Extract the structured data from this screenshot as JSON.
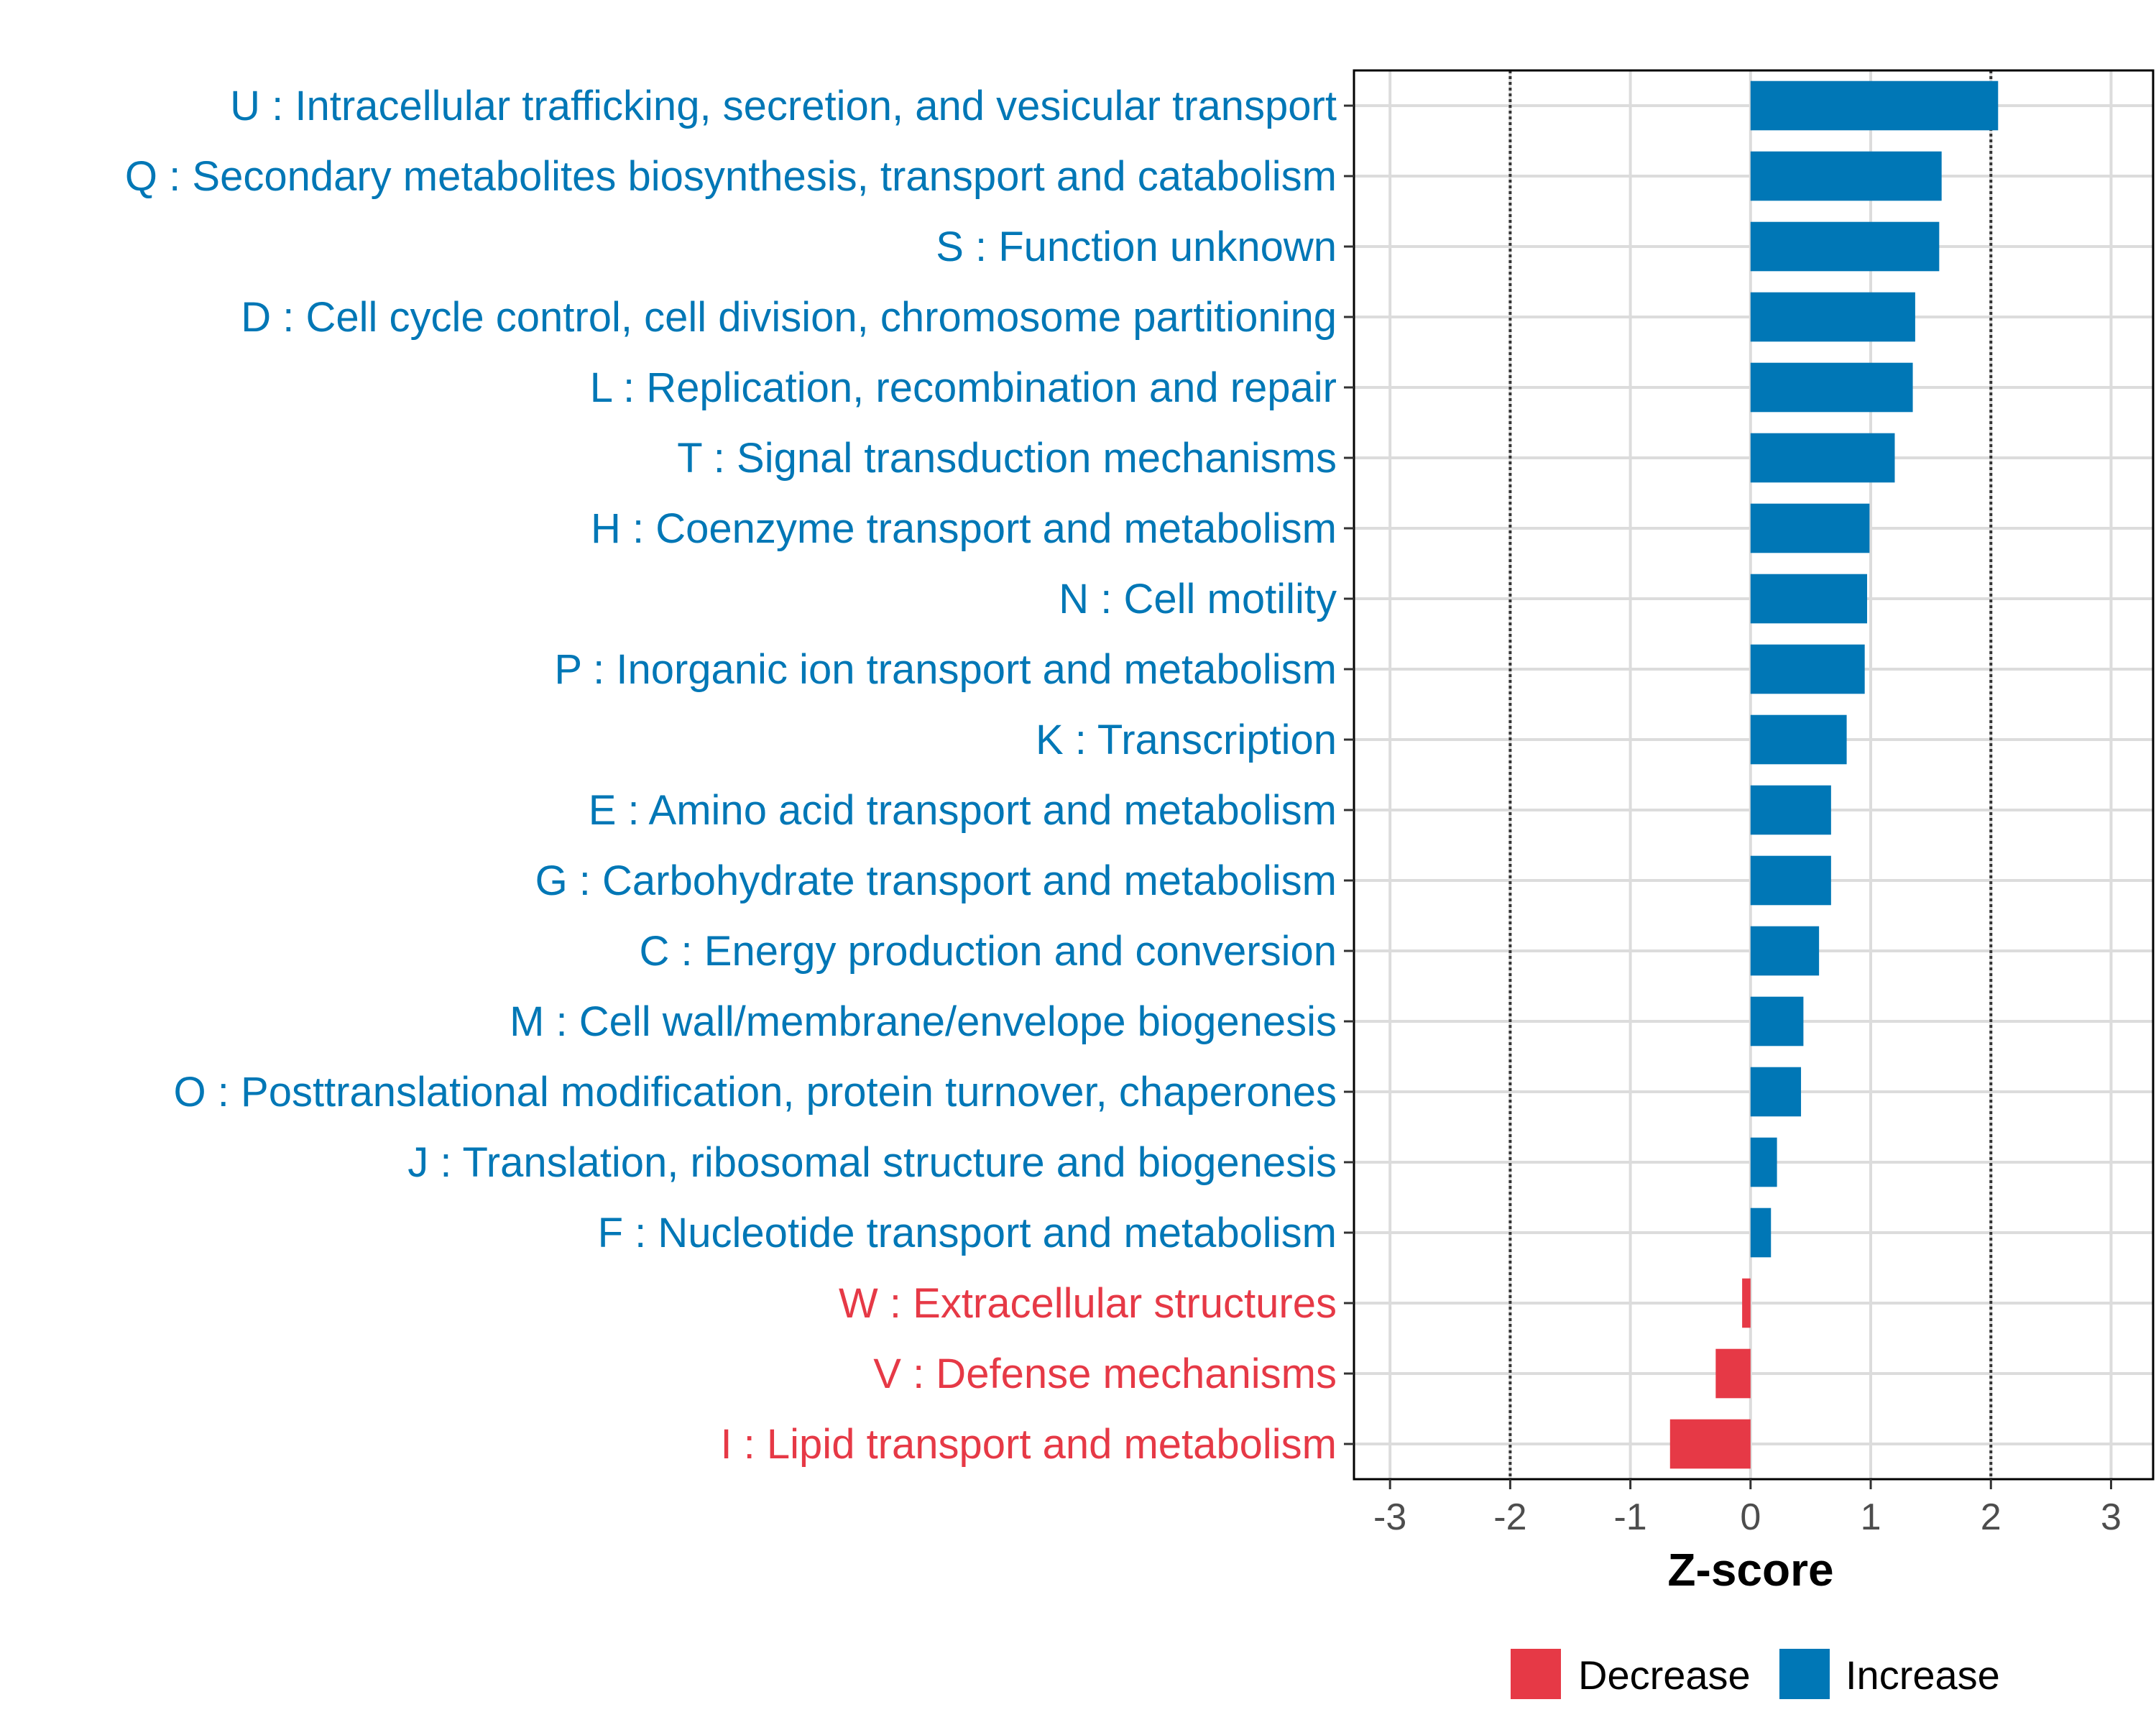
{
  "chart_data": {
    "type": "bar",
    "orientation": "horizontal",
    "title": "",
    "xlabel": "Z-score",
    "ylabel": "",
    "xlim": [
      -3.3,
      3.35
    ],
    "xticks": [
      -3,
      -2,
      -1,
      0,
      1,
      2,
      3
    ],
    "reference_lines": [
      -2,
      2
    ],
    "grid": true,
    "legend_position": "bottom",
    "colors": {
      "Decrease": "#e63946",
      "Increase": "#0077b6"
    },
    "legend": [
      {
        "key": "Decrease",
        "label": "Decrease"
      },
      {
        "key": "Increase",
        "label": "Increase"
      }
    ],
    "categories": [
      "U : Intracellular trafficking, secretion, and vesicular transport",
      "Q : Secondary metabolites biosynthesis, transport and catabolism",
      "S : Function unknown",
      "D : Cell cycle control, cell division, chromosome partitioning",
      "L : Replication, recombination and repair",
      "T : Signal transduction mechanisms",
      "H : Coenzyme transport and metabolism",
      "N : Cell motility",
      "P : Inorganic ion transport and metabolism",
      "K : Transcription",
      "E : Amino acid transport and metabolism",
      "G : Carbohydrate transport and metabolism",
      "C : Energy production and conversion",
      "M : Cell wall/membrane/envelope biogenesis",
      "O : Posttranslational modification, protein turnover, chaperones",
      "J : Translation, ribosomal structure and biogenesis",
      "F : Nucleotide transport and metabolism",
      "W : Extracellular structures",
      "V : Defense mechanisms",
      "I : Lipid transport and metabolism"
    ],
    "values": [
      2.06,
      1.59,
      1.57,
      1.37,
      1.35,
      1.2,
      0.99,
      0.97,
      0.95,
      0.8,
      0.67,
      0.67,
      0.57,
      0.44,
      0.42,
      0.22,
      0.17,
      -0.07,
      -0.29,
      -0.67
    ],
    "groups": [
      "Increase",
      "Increase",
      "Increase",
      "Increase",
      "Increase",
      "Increase",
      "Increase",
      "Increase",
      "Increase",
      "Increase",
      "Increase",
      "Increase",
      "Increase",
      "Increase",
      "Increase",
      "Increase",
      "Increase",
      "Decrease",
      "Decrease",
      "Decrease"
    ]
  }
}
